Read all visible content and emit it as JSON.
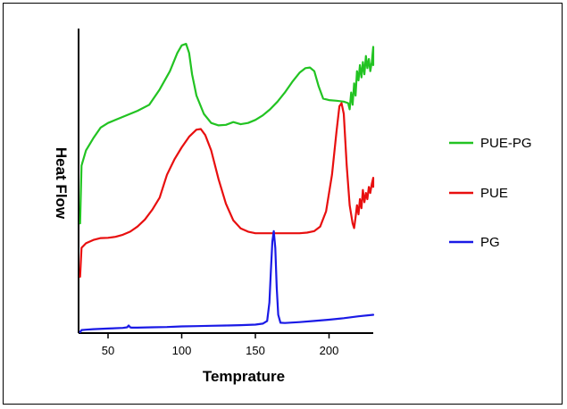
{
  "chart_data": {
    "type": "line",
    "title": "",
    "xlabel": "Temprature",
    "ylabel": "Heat Flow",
    "xlim": [
      30,
      230
    ],
    "ylim": [
      0,
      100
    ],
    "x_ticks": [
      50,
      100,
      150,
      200
    ],
    "y_ticks_shown": false,
    "grid": false,
    "legend_position": "right",
    "series": [
      {
        "name": "PUE-PG",
        "color": "#22c322",
        "points": [
          [
            31,
            36
          ],
          [
            32,
            55
          ],
          [
            35,
            60
          ],
          [
            40,
            64
          ],
          [
            45,
            67.5
          ],
          [
            50,
            69
          ],
          [
            60,
            71
          ],
          [
            70,
            73
          ],
          [
            78,
            75
          ],
          [
            85,
            80
          ],
          [
            92,
            86
          ],
          [
            97,
            92
          ],
          [
            100,
            94.5
          ],
          [
            103,
            95
          ],
          [
            105,
            92
          ],
          [
            107,
            85
          ],
          [
            110,
            78
          ],
          [
            115,
            72
          ],
          [
            120,
            69
          ],
          [
            125,
            68.2
          ],
          [
            130,
            68.4
          ],
          [
            135,
            69.3
          ],
          [
            140,
            68.6
          ],
          [
            145,
            69
          ],
          [
            150,
            70
          ],
          [
            155,
            71.5
          ],
          [
            160,
            73.5
          ],
          [
            165,
            76
          ],
          [
            170,
            79
          ],
          [
            175,
            82.5
          ],
          [
            180,
            85.5
          ],
          [
            184,
            87
          ],
          [
            187,
            87.2
          ],
          [
            190,
            86
          ],
          [
            193,
            81
          ],
          [
            196,
            77
          ],
          [
            200,
            76.5
          ],
          [
            205,
            76.3
          ],
          [
            210,
            76
          ],
          [
            213,
            75.5
          ],
          [
            214,
            73.5
          ],
          [
            215,
            79
          ],
          [
            216,
            75
          ],
          [
            217,
            82
          ],
          [
            218,
            78
          ],
          [
            219,
            86
          ],
          [
            220,
            83
          ],
          [
            221,
            88
          ],
          [
            222,
            84
          ],
          [
            223,
            89
          ],
          [
            224,
            85
          ],
          [
            225,
            91
          ],
          [
            226,
            87
          ],
          [
            227,
            90
          ],
          [
            228,
            86
          ],
          [
            229,
            89
          ],
          [
            230,
            94
          ],
          [
            230,
            88
          ]
        ]
      },
      {
        "name": "PUE",
        "color": "#e80f0f",
        "points": [
          [
            31,
            18.5
          ],
          [
            32,
            28
          ],
          [
            35,
            29.5
          ],
          [
            40,
            30.6
          ],
          [
            45,
            31.2
          ],
          [
            50,
            31.3
          ],
          [
            55,
            31.6
          ],
          [
            60,
            32.3
          ],
          [
            65,
            33.3
          ],
          [
            70,
            35
          ],
          [
            75,
            37.3
          ],
          [
            80,
            40.5
          ],
          [
            85,
            44.5
          ],
          [
            88,
            49
          ],
          [
            90,
            52
          ],
          [
            95,
            57
          ],
          [
            100,
            61
          ],
          [
            105,
            64.5
          ],
          [
            110,
            66.8
          ],
          [
            113,
            67
          ],
          [
            116,
            65
          ],
          [
            120,
            60
          ],
          [
            125,
            50.5
          ],
          [
            130,
            42.5
          ],
          [
            135,
            37
          ],
          [
            140,
            34.4
          ],
          [
            145,
            33.3
          ],
          [
            150,
            32.8
          ],
          [
            160,
            32.8
          ],
          [
            170,
            32.8
          ],
          [
            180,
            32.8
          ],
          [
            185,
            33
          ],
          [
            190,
            33.5
          ],
          [
            194,
            35
          ],
          [
            198,
            40
          ],
          [
            202,
            52
          ],
          [
            205,
            66
          ],
          [
            207,
            74.5
          ],
          [
            208.5,
            75.5
          ],
          [
            210,
            72
          ],
          [
            212,
            55
          ],
          [
            214,
            42
          ],
          [
            216,
            36
          ],
          [
            217,
            34.5
          ],
          [
            218,
            38
          ],
          [
            219,
            42
          ],
          [
            220,
            39
          ],
          [
            221,
            44
          ],
          [
            222,
            41
          ],
          [
            223,
            47
          ],
          [
            224,
            43
          ],
          [
            225,
            46
          ],
          [
            226,
            44
          ],
          [
            227,
            48
          ],
          [
            228,
            46
          ],
          [
            229,
            49
          ],
          [
            230,
            51
          ],
          [
            230,
            48
          ]
        ]
      },
      {
        "name": "PG",
        "color": "#1a1ae6",
        "points": [
          [
            31,
            0.3
          ],
          [
            32,
            1
          ],
          [
            35,
            1.1
          ],
          [
            40,
            1.3
          ],
          [
            50,
            1.5
          ],
          [
            60,
            1.7
          ],
          [
            63,
            1.9
          ],
          [
            64,
            2.5
          ],
          [
            65,
            1.9
          ],
          [
            66,
            1.8
          ],
          [
            70,
            1.8
          ],
          [
            80,
            1.9
          ],
          [
            90,
            2
          ],
          [
            100,
            2.2
          ],
          [
            110,
            2.3
          ],
          [
            120,
            2.4
          ],
          [
            130,
            2.5
          ],
          [
            140,
            2.6
          ],
          [
            150,
            2.8
          ],
          [
            155,
            3.1
          ],
          [
            158,
            4
          ],
          [
            159.5,
            10
          ],
          [
            160.5,
            20
          ],
          [
            161.5,
            30
          ],
          [
            162.5,
            33.5
          ],
          [
            163.5,
            28
          ],
          [
            164.5,
            15
          ],
          [
            165.5,
            6
          ],
          [
            167,
            3.4
          ],
          [
            170,
            3.3
          ],
          [
            180,
            3.6
          ],
          [
            190,
            4
          ],
          [
            200,
            4.4
          ],
          [
            210,
            4.9
          ],
          [
            220,
            5.5
          ],
          [
            230,
            6
          ]
        ]
      }
    ]
  }
}
